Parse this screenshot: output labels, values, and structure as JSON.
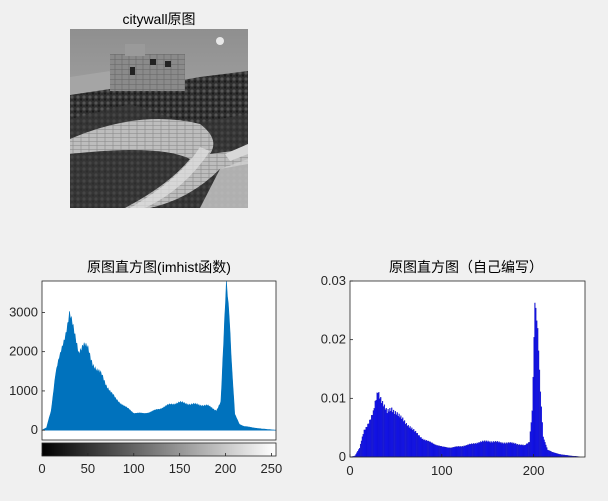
{
  "figure": {
    "image_title": "citywall原图",
    "imhist_title": "原图直方图(imhist函数)",
    "custom_title": "原图直方图（自己编写）"
  },
  "colors": {
    "imhist_fill": "#0072bd",
    "custom_fill": "#0000ff",
    "axes_bg": "#ffffff",
    "figure_bg": "#f0f0f0"
  },
  "chart_data": [
    {
      "type": "area",
      "title": "原图直方图(imhist函数)",
      "xlabel": "",
      "ylabel": "",
      "xlim": [
        0,
        255
      ],
      "ylim": [
        -250,
        3800
      ],
      "xticks": [
        0,
        50,
        100,
        150,
        200,
        250
      ],
      "xtick_labels": [
        "0",
        "50",
        "100",
        "150",
        "200",
        "250"
      ],
      "yticks": [
        0,
        1000,
        2000,
        3000
      ],
      "ytick_labels": [
        "0",
        "1000",
        "2000",
        "3000"
      ],
      "colorbar": "grayscale 0-255",
      "grid": false,
      "x": [
        0,
        5,
        10,
        15,
        20,
        25,
        30,
        35,
        40,
        45,
        50,
        55,
        60,
        65,
        70,
        75,
        80,
        85,
        90,
        95,
        100,
        110,
        120,
        130,
        140,
        150,
        160,
        170,
        180,
        190,
        195,
        198,
        201,
        204,
        207,
        210,
        215,
        220,
        230,
        240,
        250,
        255
      ],
      "y": [
        0,
        60,
        500,
        1450,
        1900,
        2400,
        2950,
        2450,
        2000,
        2150,
        2050,
        1700,
        1500,
        1400,
        1150,
        950,
        800,
        700,
        600,
        520,
        440,
        420,
        470,
        560,
        650,
        700,
        660,
        640,
        620,
        500,
        700,
        2200,
        3800,
        3000,
        1500,
        400,
        150,
        100,
        60,
        30,
        10,
        0
      ]
    },
    {
      "type": "bar",
      "title": "原图直方图（自己编写）",
      "xlabel": "",
      "ylabel": "",
      "xlim": [
        0,
        256
      ],
      "ylim": [
        0,
        0.03
      ],
      "xticks": [
        0,
        100,
        200
      ],
      "xtick_labels": [
        "0",
        "100",
        "200"
      ],
      "yticks": [
        0,
        0.01,
        0.02,
        0.03
      ],
      "ytick_labels": [
        "0",
        "0.01",
        "0.02",
        "0.03"
      ],
      "grid": false,
      "x": [
        0,
        5,
        10,
        15,
        20,
        25,
        30,
        35,
        40,
        45,
        50,
        55,
        60,
        65,
        70,
        75,
        80,
        85,
        90,
        95,
        100,
        110,
        120,
        130,
        140,
        150,
        160,
        170,
        180,
        190,
        195,
        198,
        201,
        204,
        207,
        210,
        215,
        220,
        230,
        240,
        250,
        255
      ],
      "y": [
        0,
        0.0002,
        0.0015,
        0.0045,
        0.006,
        0.0075,
        0.0112,
        0.0095,
        0.0075,
        0.0081,
        0.0077,
        0.0066,
        0.0058,
        0.0052,
        0.0043,
        0.0036,
        0.003,
        0.0026,
        0.0023,
        0.002,
        0.0017,
        0.0016,
        0.0018,
        0.0021,
        0.0025,
        0.0027,
        0.0025,
        0.0024,
        0.0023,
        0.0019,
        0.0026,
        0.008,
        0.0265,
        0.021,
        0.011,
        0.0035,
        0.0012,
        0.0008,
        0.0004,
        0.0002,
        5e-05,
        0
      ]
    }
  ]
}
